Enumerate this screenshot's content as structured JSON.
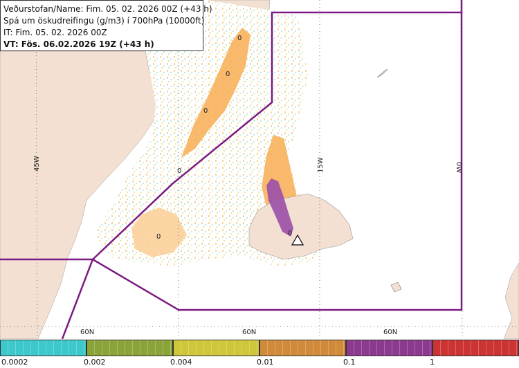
{
  "header": {
    "line1": "Veðurstofan/Name: Fim. 05. 02. 2026 00Z (+43 h)",
    "line2": "Spá um öskudreifingu (g/m3) í 700hPa (10000ft)",
    "line3": "IT: Fim. 05. 02. 2026 00Z",
    "line4": "VT: Fös. 06.02.2026 19Z (+43 h)"
  },
  "map": {
    "lon_labels": [
      "45W",
      "15W",
      "0W"
    ],
    "lat_labels": [
      "60N",
      "60N",
      "60N"
    ],
    "contour_labels": [
      "0",
      "0",
      "0",
      "0",
      "0",
      "0"
    ],
    "colors": {
      "land": "#f3e0d2",
      "sea": "#ffffff",
      "ash_light": "#fbd7a0",
      "ash_orange": "#f8ae55",
      "ash_purple": "#9b4fa8",
      "boundary": "#7b1a82"
    }
  },
  "legend": {
    "labels": [
      "0.0002",
      "0.002",
      "0.004",
      "0.01",
      "0.1",
      "1"
    ],
    "colors": [
      "#3dc9cc",
      "#8aa43a",
      "#cfc63a",
      "#d08a3a",
      "#8c3a8e",
      "#cc3333"
    ]
  }
}
